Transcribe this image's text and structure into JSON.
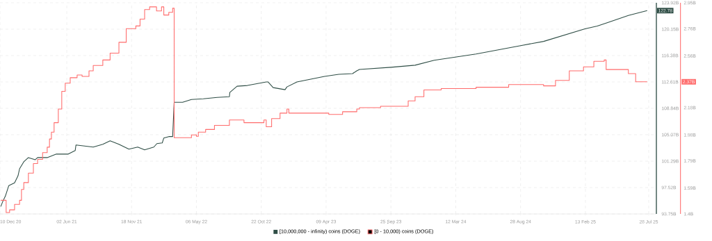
{
  "chart_data": {
    "type": "line",
    "xlim": [
      "2020-12-10",
      "2025-08-17"
    ],
    "xticks": [
      {
        "value": "2020-12-10",
        "label": "10 Dec 20"
      },
      {
        "value": "2021-06-02",
        "label": "02 Jun 21"
      },
      {
        "value": "2021-11-18",
        "label": "18 Nov 21"
      },
      {
        "value": "2022-05-06",
        "label": "06 May 22"
      },
      {
        "value": "2022-10-22",
        "label": "22 Oct 22"
      },
      {
        "value": "2023-04-09",
        "label": "09 Apr 23"
      },
      {
        "value": "2023-09-25",
        "label": "25 Sep 23"
      },
      {
        "value": "2024-03-12",
        "label": "12 Mar 24"
      },
      {
        "value": "2024-08-28",
        "label": "28 Aug 24"
      },
      {
        "value": "2025-02-13",
        "label": "13 Feb 25"
      },
      {
        "value": "2025-07-28",
        "label": "28 Jul 25"
      }
    ],
    "ylim": [
      93.75,
      123.92
    ],
    "yticks": [
      {
        "value": 93.75,
        "label": "93.75B"
      },
      {
        "value": 97.52,
        "label": "97.52B"
      },
      {
        "value": 101.29,
        "label": "101.29B"
      },
      {
        "value": 105.07,
        "label": "105.07B"
      },
      {
        "value": 108.84,
        "label": "108.84B"
      },
      {
        "value": 112.61,
        "label": "112.61B"
      },
      {
        "value": 116.38,
        "label": "116.38B"
      },
      {
        "value": 120.15,
        "label": "120.15B"
      },
      {
        "value": 123.92,
        "label": "123.92B"
      }
    ],
    "y2lim": [
      1.4,
      2.95
    ],
    "y2ticks": [
      {
        "value": 1.4,
        "label": "1.4B"
      },
      {
        "value": 1.59,
        "label": "1.59B"
      },
      {
        "value": 1.79,
        "label": "1.79B"
      },
      {
        "value": 1.98,
        "label": "1.98B"
      },
      {
        "value": 2.18,
        "label": "2.18B"
      },
      {
        "value": 2.37,
        "label": null
      },
      {
        "value": 2.56,
        "label": "2.56B"
      },
      {
        "value": 2.76,
        "label": "2.76B"
      },
      {
        "value": 2.95,
        "label": "2.95B"
      }
    ],
    "grid": true,
    "legend": "bottom",
    "series": [
      {
        "name": "[10,000,000 - infinity) coins (DOGE)",
        "color": "#2e4d45",
        "x": [
          "2020-12-12",
          "2020-12-17",
          "2020-12-24",
          "2021-01-02",
          "2021-01-17",
          "2021-01-26",
          "2021-01-30",
          "2021-02-10",
          "2021-02-22",
          "2021-03-12",
          "2021-03-18",
          "2021-04-12",
          "2021-05-06",
          "2021-06-06",
          "2021-06-24",
          "2021-06-26",
          "2021-08-10",
          "2021-09-04",
          "2021-09-23",
          "2021-10-16",
          "2021-11-11",
          "2021-12-04",
          "2021-12-22",
          "2022-01-15",
          "2022-01-23",
          "2022-02-06",
          "2022-02-10",
          "2022-02-23",
          "2022-03-05",
          "2022-03-09",
          "2022-03-31",
          "2022-04-23",
          "2022-05-24",
          "2022-06-29",
          "2022-07-31",
          "2022-08-01",
          "2022-08-20",
          "2022-09-16",
          "2022-11-04",
          "2022-11-09",
          "2022-11-22",
          "2022-12-23",
          "2022-12-28",
          "2023-01-23",
          "2023-02-28",
          "2023-04-05",
          "2023-05-12",
          "2023-06-17",
          "2023-06-28",
          "2023-07-05",
          "2023-09-25",
          "2023-11-27",
          "2024-01-16",
          "2024-05-04",
          "2024-08-28",
          "2024-10-27",
          "2025-02-12",
          "2025-03-16",
          "2025-04-12",
          "2025-06-05",
          "2025-07-24"
        ],
        "values": [
          94.8,
          95.5,
          96.3,
          97.8,
          98.2,
          99.2,
          100.2,
          101.2,
          101.8,
          101.5,
          101.8,
          101.8,
          102.3,
          102.3,
          102.8,
          103.6,
          103.3,
          103.7,
          104.2,
          103.7,
          103.0,
          103.3,
          102.9,
          103.3,
          103.8,
          103.9,
          104.6,
          104.8,
          104.8,
          109.7,
          109.7,
          110.1,
          110.2,
          110.4,
          110.5,
          111.1,
          112.0,
          112.1,
          112.6,
          112.6,
          111.8,
          111.5,
          111.9,
          112.6,
          113.0,
          113.4,
          113.7,
          113.8,
          114.2,
          114.4,
          114.7,
          115.0,
          115.7,
          116.6,
          117.8,
          118.4,
          120.2,
          120.6,
          121.1,
          122.1,
          122.8
        ]
      },
      {
        "name": "[0 - 10,000) coins (DOGE)",
        "type": "step",
        "axis": "y2",
        "color": "#ff6b6b",
        "x": [
          "2020-12-12",
          "2020-12-17",
          "2020-12-26",
          "2021-01-04",
          "2021-01-17",
          "2021-01-30",
          "2021-02-04",
          "2021-02-10",
          "2021-02-22",
          "2021-03-07",
          "2021-03-18",
          "2021-03-31",
          "2021-04-12",
          "2021-04-18",
          "2021-04-23",
          "2021-04-30",
          "2021-05-11",
          "2021-05-20",
          "2021-05-29",
          "2021-06-11",
          "2021-06-29",
          "2021-07-12",
          "2021-07-30",
          "2021-08-10",
          "2021-09-04",
          "2021-09-23",
          "2021-10-16",
          "2021-11-04",
          "2021-11-29",
          "2021-12-10",
          "2021-12-22",
          "2022-01-04",
          "2022-01-22",
          "2022-02-04",
          "2022-02-10",
          "2022-02-23",
          "2022-03-05",
          "2022-03-09",
          "2022-04-23",
          "2022-05-06",
          "2022-05-11",
          "2022-05-30",
          "2022-06-22",
          "2022-07-31",
          "2022-09-05",
          "2022-09-07",
          "2022-10-29",
          "2022-11-04",
          "2022-11-13",
          "2022-11-18",
          "2022-12-10",
          "2022-12-28",
          "2023-01-02",
          "2023-02-28",
          "2023-04-16",
          "2023-05-22",
          "2023-06-28",
          "2023-07-05",
          "2023-08-29",
          "2023-11-09",
          "2023-11-27",
          "2023-12-20",
          "2024-02-03",
          "2024-05-04",
          "2024-07-28",
          "2024-10-27",
          "2024-11-27",
          "2025-01-02",
          "2025-02-08",
          "2025-03-07",
          "2025-04-03",
          "2025-04-08",
          "2025-06-05",
          "2025-06-24",
          "2025-07-24"
        ],
        "values": [
          1.5,
          1.5,
          1.41,
          1.43,
          1.47,
          1.5,
          1.58,
          1.63,
          1.7,
          1.77,
          1.8,
          1.85,
          1.89,
          1.95,
          2.0,
          2.07,
          2.17,
          2.3,
          2.36,
          2.4,
          2.42,
          2.41,
          2.45,
          2.49,
          2.53,
          2.58,
          2.66,
          2.76,
          2.78,
          2.83,
          2.9,
          2.92,
          2.89,
          2.92,
          2.86,
          2.88,
          2.91,
          1.96,
          1.98,
          1.97,
          2.0,
          2.02,
          2.05,
          2.09,
          2.09,
          2.07,
          2.09,
          2.04,
          2.04,
          2.1,
          2.14,
          2.17,
          2.14,
          2.14,
          2.13,
          2.15,
          2.17,
          2.18,
          2.19,
          2.23,
          2.26,
          2.31,
          2.32,
          2.33,
          2.35,
          2.34,
          2.38,
          2.45,
          2.48,
          2.52,
          2.53,
          2.46,
          2.43,
          2.37,
          2.37
        ]
      }
    ],
    "annotations": [
      "122.78",
      "2.37B"
    ]
  }
}
